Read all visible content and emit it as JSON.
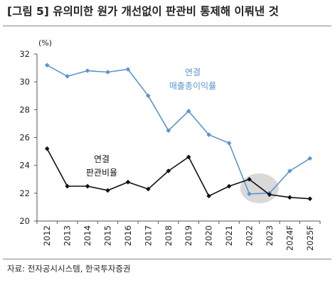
{
  "header": {
    "title": "[그림 5] 유의미한 원가 개선없이 판관비 통제해 이뤄낸 것"
  },
  "footer": {
    "source": "자료: 전자공시시스템, 한국투자증권"
  },
  "colors": {
    "sales_margin": "#5B95CF",
    "sga_ratio": "#111111",
    "highlight": "#D9D9D9"
  },
  "chart_data": {
    "type": "line",
    "unit_label": "(%)",
    "categories": [
      "2012",
      "2013",
      "2014",
      "2015",
      "2016",
      "2017",
      "2018",
      "2019",
      "2020",
      "2021",
      "2022",
      "2023",
      "2024F",
      "2025F"
    ],
    "ylim": [
      20,
      32
    ],
    "yticks": [
      20,
      22,
      24,
      26,
      28,
      30,
      32
    ],
    "grid": false,
    "series": [
      {
        "key": "sales_margin",
        "name": "연결 매출총이익률",
        "label_lines": [
          "연결",
          "매출총이익률"
        ],
        "values": [
          31.2,
          30.4,
          30.8,
          30.7,
          30.9,
          29.0,
          26.5,
          27.9,
          26.2,
          25.6,
          21.95,
          22.0,
          23.6,
          24.5
        ]
      },
      {
        "key": "sga_ratio",
        "name": "연결 판관비율",
        "label_lines": [
          "연결",
          "판관비율"
        ],
        "values": [
          25.2,
          22.5,
          22.5,
          22.2,
          22.8,
          22.3,
          23.6,
          24.6,
          21.8,
          22.5,
          23.0,
          21.9,
          21.7,
          21.6
        ]
      }
    ],
    "annotation": "highlight ellipse around 2022–2023 crossover"
  }
}
